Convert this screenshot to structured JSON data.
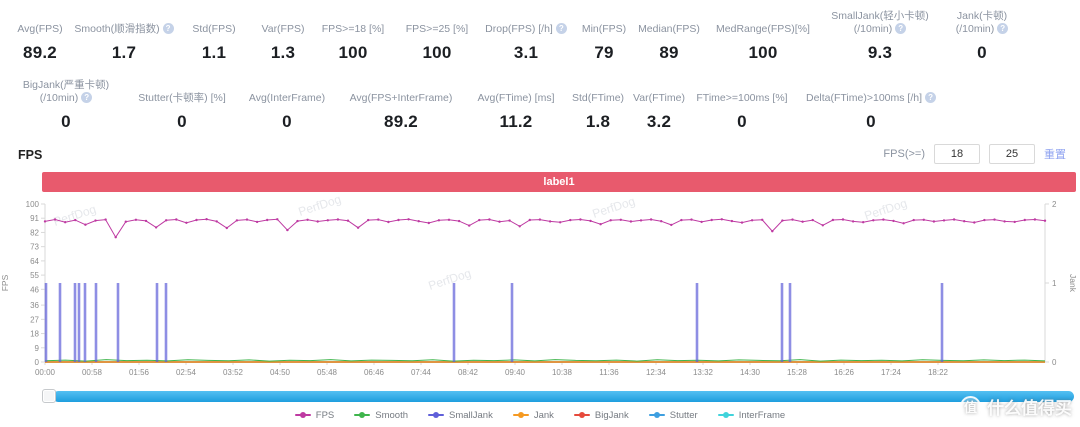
{
  "metrics_row1": [
    {
      "label": "Avg(FPS)",
      "info": false,
      "value": "89.2"
    },
    {
      "label": "Smooth(顺滑指数)",
      "info": true,
      "value": "1.7"
    },
    {
      "label": "Std(FPS)",
      "info": false,
      "value": "1.1"
    },
    {
      "label": "Var(FPS)",
      "info": false,
      "value": "1.3"
    },
    {
      "label": "FPS>=18 [%]",
      "info": false,
      "value": "100"
    },
    {
      "label": "FPS>=25 [%]",
      "info": false,
      "value": "100"
    },
    {
      "label": "Drop(FPS) [/h]",
      "info": true,
      "value": "3.1"
    },
    {
      "label": "Min(FPS)",
      "info": false,
      "value": "79"
    },
    {
      "label": "Median(FPS)",
      "info": false,
      "value": "89"
    },
    {
      "label": "MedRange(FPS)[%]",
      "info": false,
      "value": "100"
    },
    {
      "label": "SmallJank(轻小卡顿)\n(/10min)",
      "info": true,
      "value": "9.3"
    },
    {
      "label": "Jank(卡顿)\n(/10min)",
      "info": true,
      "value": "0"
    }
  ],
  "metrics_row2": [
    {
      "label": "BigJank(严重卡顿)\n(/10min)",
      "info": true,
      "value": "0"
    },
    {
      "label": "Stutter(卡顿率) [%]",
      "info": false,
      "value": "0"
    },
    {
      "label": "Avg(InterFrame)",
      "info": false,
      "value": "0"
    },
    {
      "label": "Avg(FPS+InterFrame)",
      "info": false,
      "value": "89.2"
    },
    {
      "label": "Avg(FTime) [ms]",
      "info": false,
      "value": "11.2"
    },
    {
      "label": "Std(FTime)",
      "info": false,
      "value": "1.8"
    },
    {
      "label": "Var(FTime)",
      "info": false,
      "value": "3.2"
    },
    {
      "label": "FTime>=100ms [%]",
      "info": false,
      "value": "0"
    },
    {
      "label": "Delta(FTime)>100ms [/h]",
      "info": true,
      "value": "0"
    }
  ],
  "fps_section": {
    "title": "FPS",
    "threshold_label": "FPS(>=)",
    "threshold_low": "18",
    "threshold_high": "25",
    "reset_label": "重置"
  },
  "banner": {
    "text": "label1",
    "color": "#e85a6d"
  },
  "chart_data": {
    "type": "line",
    "title": "label1",
    "watermark": "PerfDog",
    "x_labels": [
      "00:00",
      "00:58",
      "01:56",
      "02:54",
      "03:52",
      "04:50",
      "05:48",
      "06:46",
      "07:44",
      "08:42",
      "09:40",
      "10:38",
      "11:36",
      "12:34",
      "13:32",
      "14:30",
      "15:28",
      "16:26",
      "17:24",
      "18:22"
    ],
    "y_left": {
      "label": "FPS",
      "range": [
        0,
        100
      ],
      "ticks": [
        0,
        9,
        18,
        27,
        36,
        46,
        55,
        64,
        73,
        82,
        91,
        100
      ]
    },
    "y_right": {
      "label": "Jank",
      "range": [
        0,
        2
      ],
      "ticks": [
        0,
        1,
        2
      ]
    },
    "series": [
      {
        "name": "FPS",
        "color": "#be3aa2",
        "axis": "left",
        "type": "line",
        "values": [
          89.0,
          90.2,
          88.5,
          89.8,
          86.9,
          89.5,
          90.1,
          79.0,
          88.8,
          90.0,
          89.3,
          85.2,
          89.7,
          90.2,
          88.1,
          89.9,
          90.4,
          89.0,
          84.8,
          89.6,
          90.1,
          88.7,
          89.9,
          90.3,
          83.5,
          89.2,
          90.0,
          88.9,
          89.7,
          90.2,
          89.4,
          85.0,
          89.8,
          90.1,
          88.6,
          89.9,
          90.3,
          89.1,
          88.0,
          89.7,
          90.0,
          89.2,
          86.3,
          89.8,
          90.2,
          88.8,
          89.5,
          85.9,
          89.9,
          90.1,
          89.0,
          88.4,
          89.8,
          90.2,
          89.3,
          87.2,
          89.7,
          90.0,
          88.9,
          89.6,
          90.2,
          89.1,
          86.8,
          89.8,
          90.1,
          88.7,
          89.9,
          90.3,
          89.2,
          88.2,
          89.7,
          90.0,
          82.8,
          89.5,
          90.1,
          88.8,
          89.8,
          86.5,
          89.9,
          90.2,
          89.0,
          88.5,
          89.7,
          90.1,
          89.3,
          87.8,
          89.8,
          90.0,
          88.9,
          89.6,
          90.2,
          89.1,
          88.3,
          89.8,
          90.1,
          89.0,
          88.7,
          89.9,
          90.2,
          89.4
        ]
      },
      {
        "name": "Smooth",
        "color": "#3fb54c",
        "axis": "left",
        "type": "line",
        "values": [
          0.8,
          1.2,
          0.6,
          1.5,
          0.9,
          1.1,
          0.7,
          1.4,
          1.0,
          0.8,
          1.3,
          0.6,
          1.1,
          0.9,
          1.5,
          0.7,
          1.2,
          1.0,
          0.8,
          1.4,
          0.6,
          1.1,
          0.9,
          1.3,
          0.7,
          1.5,
          1.0,
          0.8,
          1.2,
          0.6,
          1.4,
          0.9,
          1.1,
          0.7,
          1.3,
          1.0,
          0.8,
          1.5,
          0.6,
          1.2,
          0.9,
          1.1,
          0.7,
          1.4,
          1.0,
          0.8,
          1.3,
          0.9,
          1.2,
          0.7
        ]
      },
      {
        "name": "SmallJank",
        "color": "#5f5fd9",
        "axis": "right",
        "type": "spike",
        "spike_value": 1,
        "spike_positions": [
          0.001,
          0.015,
          0.03,
          0.034,
          0.04,
          0.051,
          0.073,
          0.112,
          0.121,
          0.409,
          0.467,
          0.652,
          0.737,
          0.745,
          0.897
        ]
      },
      {
        "name": "Jank",
        "color": "#f59a23",
        "axis": "right",
        "type": "line",
        "constant": 0
      },
      {
        "name": "BigJank",
        "color": "#e64a3c",
        "axis": "right",
        "type": "line",
        "constant": 0
      },
      {
        "name": "Stutter",
        "color": "#3e9fe0",
        "axis": "right",
        "type": "line",
        "constant": 0
      },
      {
        "name": "InterFrame",
        "color": "#41d3db",
        "axis": "left",
        "type": "line",
        "constant": 0
      }
    ]
  },
  "site_watermark": {
    "logo_char": "值",
    "text": "什么值得买"
  }
}
